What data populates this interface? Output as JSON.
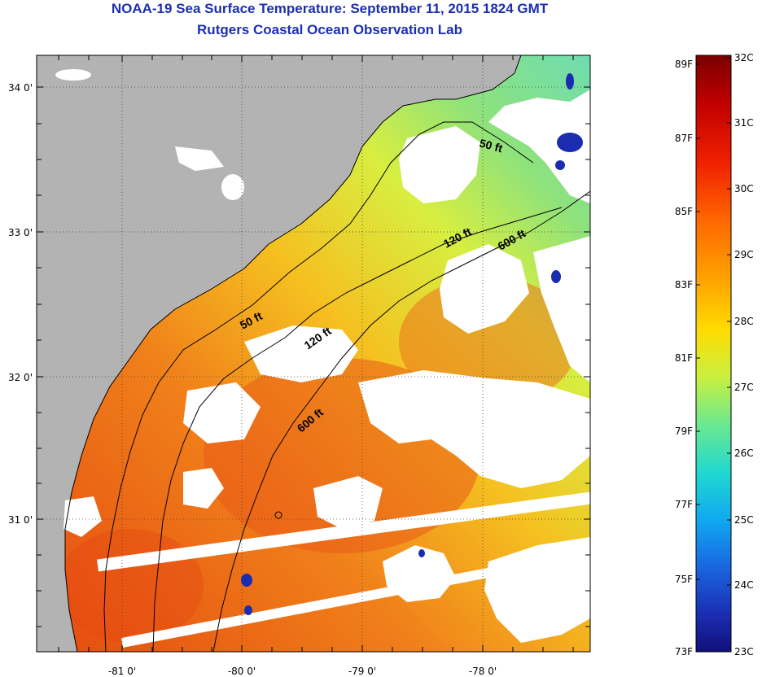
{
  "title": {
    "line1": "NOAA-19 Sea Surface Temperature:  September 11, 2015 1824 GMT",
    "line2": "Rutgers Coastal Ocean Observation Lab"
  },
  "axes": {
    "longitude_ticks": [
      "-81 0'",
      "-80 0'",
      "-79 0'",
      "-78 0'"
    ],
    "latitude_ticks": [
      "34 0'",
      "33 0'",
      "32 0'",
      "31 0'"
    ]
  },
  "contours": [
    {
      "label": "50 ft"
    },
    {
      "label": "120 ft"
    },
    {
      "label": "600 ft"
    },
    {
      "label": "50 ft"
    },
    {
      "label": "120 ft"
    },
    {
      "label": "600 ft"
    }
  ],
  "colorbar": {
    "fahrenheit_labels": [
      "89F",
      "87F",
      "85F",
      "83F",
      "81F",
      "79F",
      "77F",
      "75F",
      "73F"
    ],
    "celsius_labels": [
      "32C",
      "31C",
      "30C",
      "29C",
      "28C",
      "27C",
      "26C",
      "25C",
      "24C",
      "23C"
    ],
    "colors": [
      "#7a0000",
      "#b30000",
      "#e61a00",
      "#ff5500",
      "#ff9500",
      "#ffd200",
      "#e8f020",
      "#a8f060",
      "#5ae8a0",
      "#20d8d8",
      "#10b0f0",
      "#1870e0",
      "#1a40c0",
      "#10108a"
    ]
  },
  "colors": {
    "land": "#b3b3b3",
    "cloud": "#ffffff",
    "title": "#1c2fb0",
    "warm": "#f06a20",
    "mid": "#f5c020",
    "cool": "#9ae07a"
  }
}
